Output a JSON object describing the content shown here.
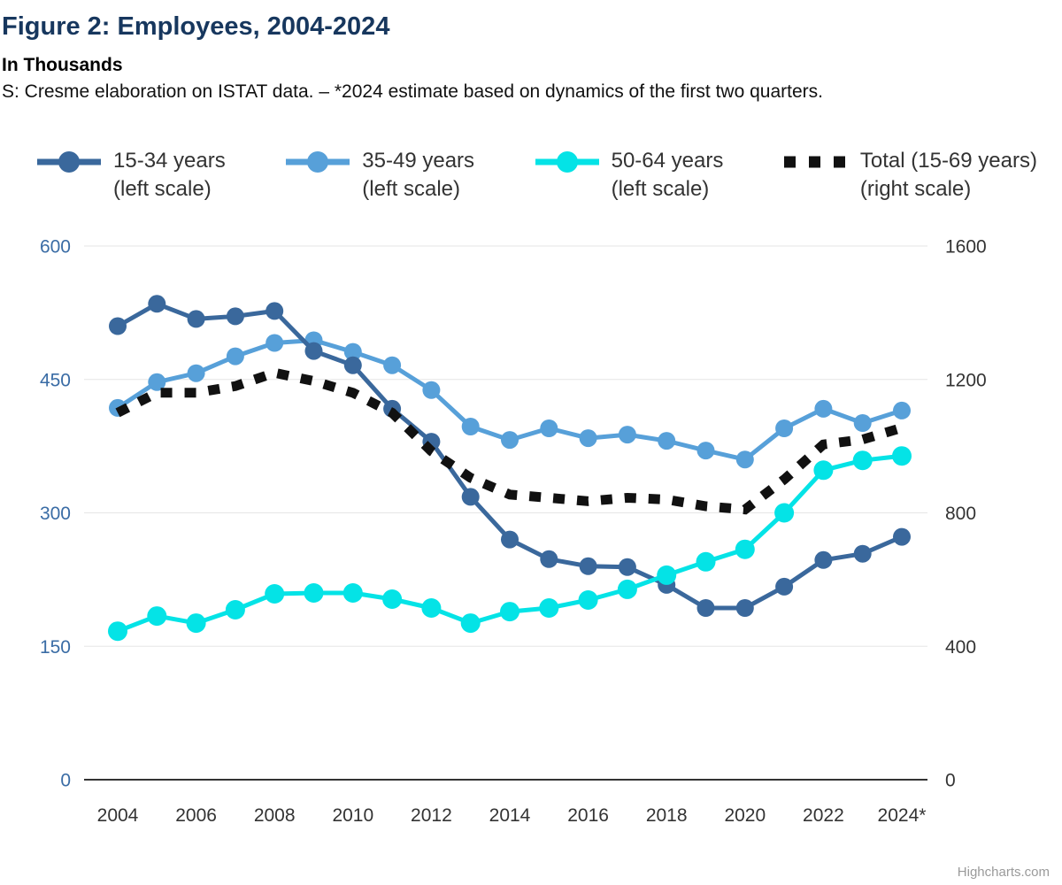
{
  "header": {
    "title": "Figure 2: Employees, 2004-2024",
    "subtitle": "In Thousands",
    "source": "S: Cresme elaboration on ISTAT data. – *2024 estimate based on dynamics of the first two quarters."
  },
  "credit": "Highcharts.com",
  "colors": {
    "title": "#17375e",
    "grid": "#e6e6e6",
    "axis_line": "#333333",
    "left_axis_labels": "#3a6ca5",
    "right_axis_labels": "#333333",
    "x_axis_labels": "#333333",
    "credit": "#9a9a9a"
  },
  "chart_data": {
    "type": "line",
    "title": "Figure 2: Employees, 2004-2024",
    "subtitle": "In Thousands",
    "x": [
      2004,
      2005,
      2006,
      2007,
      2008,
      2009,
      2010,
      2011,
      2012,
      2013,
      2014,
      2015,
      2016,
      2017,
      2018,
      2019,
      2020,
      2021,
      2022,
      2023,
      2024
    ],
    "x_tick_labels": [
      "2004",
      "2006",
      "2008",
      "2010",
      "2012",
      "2014",
      "2016",
      "2018",
      "2020",
      "2022",
      "2024*"
    ],
    "left_axis": {
      "range": [
        0,
        600
      ],
      "ticks": [
        0,
        150,
        300,
        450,
        600
      ],
      "label_color": "#3a6ca5"
    },
    "right_axis": {
      "range": [
        0,
        1600
      ],
      "ticks": [
        0,
        400,
        800,
        1200,
        1600
      ],
      "label_color": "#333333"
    },
    "grid": true,
    "legend_position": "top",
    "series": [
      {
        "name": "35-49 years",
        "scale_note": "(left scale)",
        "axis": "left",
        "color": "#57a0d9",
        "dashed": false,
        "marker_radius": 10,
        "values": [
          418,
          447,
          457,
          476,
          491,
          494,
          481,
          466,
          438,
          397,
          382,
          395,
          384,
          388,
          381,
          370,
          360,
          395,
          417,
          401,
          415
        ]
      },
      {
        "name": "15-34 years",
        "scale_note": "(left scale)",
        "axis": "left",
        "color": "#3a689c",
        "dashed": false,
        "marker_radius": 10,
        "values": [
          510,
          535,
          518,
          521,
          527,
          482,
          466,
          417,
          380,
          318,
          270,
          248,
          240,
          239,
          219,
          193,
          193,
          217,
          247,
          254,
          273
        ]
      },
      {
        "name": "50-64 years",
        "scale_note": "(left scale)",
        "axis": "left",
        "color": "#04e3e6",
        "dashed": false,
        "marker_radius": 11,
        "values": [
          167,
          184,
          176,
          191,
          209,
          210,
          210,
          203,
          193,
          176,
          189,
          193,
          202,
          214,
          230,
          245,
          259,
          300,
          348,
          359,
          364
        ]
      },
      {
        "name": "Total (15-69 years)",
        "scale_note": "(right scale)",
        "axis": "right",
        "color": "#111111",
        "dashed": true,
        "marker_radius": 0,
        "values": [
          1100,
          1160,
          1160,
          1180,
          1220,
          1195,
          1160,
          1100,
          985,
          905,
          855,
          845,
          835,
          845,
          840,
          820,
          810,
          900,
          1005,
          1020,
          1055
        ]
      }
    ],
    "legend_order": [
      "15-34 years",
      "35-49 years",
      "50-64 years",
      "Total (15-69 years)"
    ]
  }
}
